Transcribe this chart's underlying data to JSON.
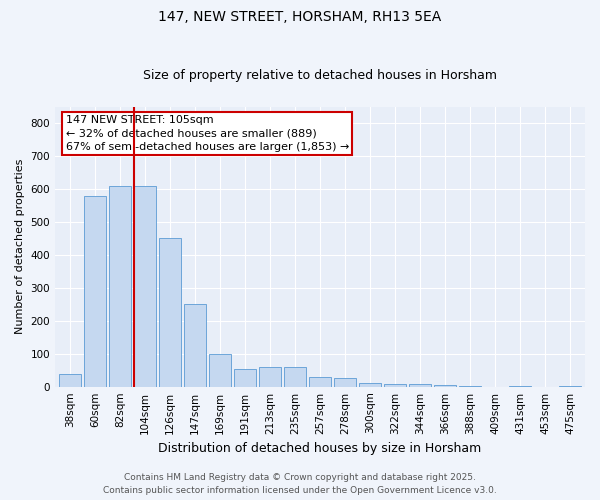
{
  "title": "147, NEW STREET, HORSHAM, RH13 5EA",
  "subtitle": "Size of property relative to detached houses in Horsham",
  "xlabel": "Distribution of detached houses by size in Horsham",
  "ylabel": "Number of detached properties",
  "categories": [
    "38sqm",
    "60sqm",
    "82sqm",
    "104sqm",
    "126sqm",
    "147sqm",
    "169sqm",
    "191sqm",
    "213sqm",
    "235sqm",
    "257sqm",
    "278sqm",
    "300sqm",
    "322sqm",
    "344sqm",
    "366sqm",
    "388sqm",
    "409sqm",
    "431sqm",
    "453sqm",
    "475sqm"
  ],
  "values": [
    40,
    580,
    610,
    610,
    450,
    250,
    100,
    55,
    60,
    60,
    30,
    25,
    12,
    8,
    8,
    5,
    3,
    0,
    2,
    0,
    2
  ],
  "bar_color": "#c5d8f0",
  "bar_edgecolor": "#5b9bd5",
  "vline_index": 3,
  "vline_color": "#cc0000",
  "annotation_text": "147 NEW STREET: 105sqm\n← 32% of detached houses are smaller (889)\n67% of semi-detached houses are larger (1,853) →",
  "annotation_box_color": "#ffffff",
  "annotation_box_edgecolor": "#cc0000",
  "ylim": [
    0,
    850
  ],
  "yticks": [
    0,
    100,
    200,
    300,
    400,
    500,
    600,
    700,
    800
  ],
  "footer_line1": "Contains HM Land Registry data © Crown copyright and database right 2025.",
  "footer_line2": "Contains public sector information licensed under the Open Government Licence v3.0.",
  "bg_color": "#f0f4fb",
  "plot_bg_color": "#e8eef8",
  "grid_color": "#ffffff",
  "title_fontsize": 10,
  "subtitle_fontsize": 9,
  "xlabel_fontsize": 9,
  "ylabel_fontsize": 8,
  "tick_fontsize": 7.5,
  "annotation_fontsize": 8,
  "footer_fontsize": 6.5
}
